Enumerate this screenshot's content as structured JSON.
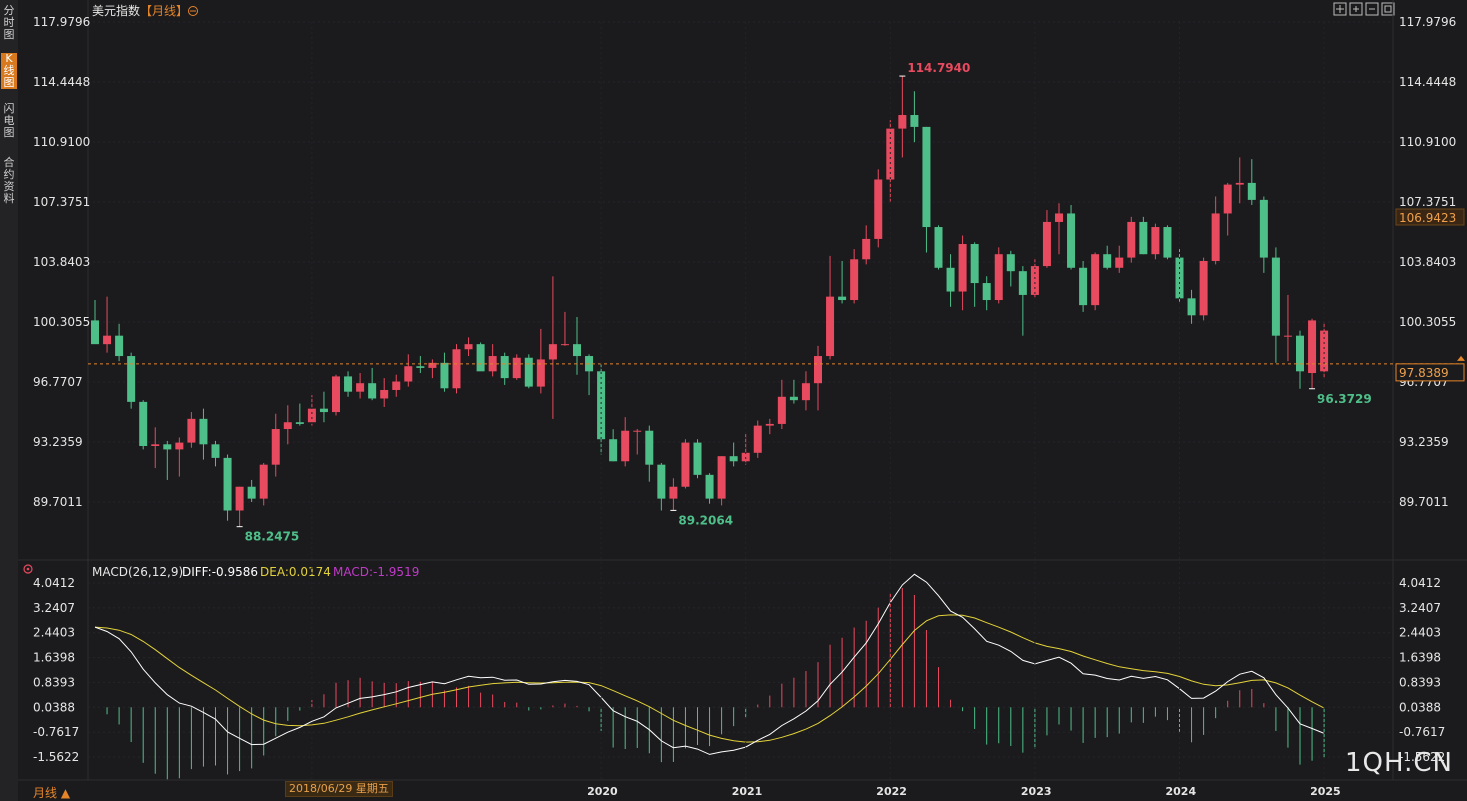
{
  "sidebar": {
    "tabs": [
      {
        "label": "分时图",
        "active": false
      },
      {
        "label": "K线图",
        "active": true
      },
      {
        "label": "闪电图",
        "active": false
      },
      {
        "label": "合约资料",
        "active": false
      }
    ]
  },
  "header": {
    "instrument": "美元指数",
    "period_tag": "【月线】",
    "settings_icon": "gear-circle-icon"
  },
  "window_controls": [
    "crosshair-icon",
    "zoom-in-icon",
    "zoom-out-icon",
    "restore-icon"
  ],
  "current_price_label": "106.9423",
  "last_price_label": "97.8389",
  "macd": {
    "label": "MACD(26,12,9)",
    "diff_text": "DIFF:-0.9586",
    "dea_text": "DEA:0.0174",
    "macd_text": "MACD:-1.9519",
    "icon": "indicator-icon"
  },
  "footer": {
    "period_button": "月线 ▲",
    "cursor_date": "2018/06/29 星期五",
    "watermark": "1QH.CN"
  },
  "colors": {
    "up": "#e84a5f",
    "down": "#4fbf8a",
    "diff": "#ffffff",
    "dea": "#e3d23a",
    "macd_label": "#c03ac8",
    "accent": "#e4852a"
  },
  "chart_data": [
    {
      "type": "candlestick",
      "title": "美元指数",
      "period": "monthly",
      "ylim": [
        87.5,
        118.6
      ],
      "y_ticks": [
        "117.9796",
        "114.4448",
        "110.9100",
        "107.3751",
        "103.8403",
        "100.3055",
        "96.7707",
        "93.2359",
        "89.7011"
      ],
      "x_ticks": [
        "2018",
        "2020",
        "2021",
        "2022",
        "2023",
        "2024",
        "2025"
      ],
      "start_month": "2017-04",
      "annotations": [
        {
          "text": "114.7940",
          "kind": "high"
        },
        {
          "text": "88.2475",
          "kind": "low"
        },
        {
          "text": "89.2064",
          "kind": "low"
        },
        {
          "text": "96.3729",
          "kind": "low"
        }
      ],
      "reference_line": 97.8389,
      "ohlc": [
        [
          100.4,
          101.6,
          99.3,
          99.0
        ],
        [
          99.0,
          101.8,
          98.5,
          99.5
        ],
        [
          99.5,
          100.2,
          98.0,
          98.3
        ],
        [
          98.3,
          98.5,
          95.2,
          95.6
        ],
        [
          95.6,
          95.7,
          92.8,
          93.0
        ],
        [
          93.0,
          94.1,
          91.7,
          93.1
        ],
        [
          93.1,
          93.3,
          91.0,
          92.8
        ],
        [
          92.8,
          93.5,
          91.2,
          93.2
        ],
        [
          93.2,
          95.0,
          92.9,
          94.6
        ],
        [
          94.6,
          95.2,
          92.2,
          93.1
        ],
        [
          93.1,
          93.3,
          91.8,
          92.3
        ],
        [
          92.3,
          92.5,
          88.6,
          89.2
        ],
        [
          89.2,
          90.6,
          88.2475,
          90.6
        ],
        [
          90.6,
          91.0,
          89.7,
          89.9
        ],
        [
          89.9,
          92.0,
          89.5,
          91.9
        ],
        [
          91.9,
          94.9,
          91.2,
          94.0
        ],
        [
          94.0,
          95.4,
          93.1,
          94.4
        ],
        [
          94.4,
          95.5,
          94.2,
          94.3
        ],
        [
          94.4,
          96.0,
          94.2,
          95.2
        ],
        [
          95.2,
          96.2,
          94.4,
          95.0
        ],
        [
          95.0,
          97.2,
          94.8,
          97.1
        ],
        [
          97.1,
          97.4,
          95.9,
          96.2
        ],
        [
          96.2,
          97.3,
          95.8,
          96.7
        ],
        [
          96.7,
          97.6,
          95.7,
          95.8
        ],
        [
          95.8,
          97.0,
          95.3,
          96.3
        ],
        [
          96.3,
          97.2,
          95.9,
          96.8
        ],
        [
          96.8,
          98.4,
          96.5,
          97.7
        ],
        [
          97.7,
          98.3,
          97.3,
          97.6
        ],
        [
          97.6,
          98.1,
          97.0,
          97.9
        ],
        [
          97.9,
          98.5,
          96.2,
          96.4
        ],
        [
          96.4,
          99.0,
          96.1,
          98.7
        ],
        [
          98.7,
          99.4,
          98.3,
          99.0
        ],
        [
          99.0,
          99.1,
          97.5,
          97.4
        ],
        [
          97.4,
          99.0,
          97.1,
          98.3
        ],
        [
          98.3,
          98.5,
          96.6,
          97.0
        ],
        [
          97.0,
          98.4,
          96.9,
          98.2
        ],
        [
          98.2,
          98.4,
          96.4,
          96.5
        ],
        [
          96.5,
          99.9,
          96.1,
          98.1
        ],
        [
          98.1,
          102.99,
          94.6,
          99.0
        ],
        [
          99.0,
          100.9,
          98.9,
          99.0
        ],
        [
          99.0,
          100.6,
          97.2,
          98.3
        ],
        [
          98.3,
          98.4,
          96.0,
          97.4
        ],
        [
          97.4,
          97.8,
          92.5,
          93.4
        ],
        [
          93.4,
          93.99,
          92.1,
          92.1
        ],
        [
          92.1,
          94.7,
          91.8,
          93.9
        ],
        [
          93.9,
          94.0,
          92.5,
          93.9
        ],
        [
          93.9,
          94.2,
          90.9,
          91.9
        ],
        [
          91.9,
          92.0,
          89.2,
          89.9
        ],
        [
          89.9,
          91.1,
          89.2064,
          90.6
        ],
        [
          90.6,
          93.4,
          90.5,
          93.2
        ],
        [
          93.2,
          93.4,
          91.1,
          91.3
        ],
        [
          91.3,
          91.4,
          89.6,
          89.9
        ],
        [
          89.9,
          92.4,
          89.5,
          92.4
        ],
        [
          92.4,
          93.2,
          91.8,
          92.1
        ],
        [
          92.1,
          93.7,
          91.9,
          92.6
        ],
        [
          92.6,
          94.5,
          92.3,
          94.2
        ],
        [
          94.2,
          94.6,
          93.7,
          94.3
        ],
        [
          94.3,
          96.9,
          94.0,
          95.9
        ],
        [
          95.9,
          96.9,
          95.5,
          95.7
        ],
        [
          95.7,
          97.4,
          95.1,
          96.7
        ],
        [
          96.7,
          98.9,
          95.1,
          98.3
        ],
        [
          98.3,
          104.2,
          98.1,
          101.8
        ],
        [
          101.8,
          103.9,
          101.4,
          101.6
        ],
        [
          101.6,
          104.6,
          101.4,
          104.0
        ],
        [
          104.0,
          106.0,
          103.7,
          105.2
        ],
        [
          105.2,
          109.3,
          104.7,
          108.7
        ],
        [
          108.7,
          112.2,
          107.4,
          111.7
        ],
        [
          111.7,
          114.794,
          110.0,
          112.5
        ],
        [
          112.5,
          113.9,
          110.9,
          111.8
        ],
        [
          111.8,
          111.8,
          104.4,
          105.9
        ],
        [
          105.9,
          106.0,
          103.4,
          103.5
        ],
        [
          103.5,
          104.3,
          101.2,
          102.1
        ],
        [
          102.1,
          105.4,
          101.0,
          104.9
        ],
        [
          104.9,
          105.0,
          101.2,
          102.6
        ],
        [
          102.6,
          103.0,
          101.0,
          101.6
        ],
        [
          101.6,
          104.7,
          101.4,
          104.3
        ],
        [
          104.3,
          104.5,
          102.4,
          103.3
        ],
        [
          103.3,
          103.6,
          99.5,
          101.9
        ],
        [
          101.9,
          104.0,
          101.7,
          103.6
        ],
        [
          103.6,
          106.9,
          103.5,
          106.2
        ],
        [
          106.2,
          107.3,
          104.3,
          106.7
        ],
        [
          106.7,
          107.2,
          103.4,
          103.5
        ],
        [
          103.5,
          103.9,
          100.9,
          101.3
        ],
        [
          101.3,
          104.4,
          101.0,
          104.3
        ],
        [
          104.3,
          104.8,
          103.4,
          103.5
        ],
        [
          103.5,
          104.8,
          103.2,
          104.1
        ],
        [
          104.1,
          106.5,
          103.8,
          106.2
        ],
        [
          106.2,
          106.5,
          104.3,
          104.3
        ],
        [
          104.3,
          106.1,
          104.0,
          105.9
        ],
        [
          105.9,
          106.0,
          104.0,
          104.1
        ],
        [
          104.1,
          104.6,
          101.5,
          101.7
        ],
        [
          101.7,
          102.2,
          100.2,
          100.7
        ],
        [
          100.7,
          104.1,
          100.4,
          103.9
        ],
        [
          103.9,
          107.7,
          103.7,
          106.7
        ],
        [
          106.7,
          108.5,
          105.4,
          108.4
        ],
        [
          108.4,
          110.0,
          107.3,
          108.5
        ],
        [
          108.5,
          109.9,
          107.2,
          107.5
        ],
        [
          107.5,
          107.7,
          103.2,
          104.1
        ],
        [
          104.1,
          104.7,
          97.9,
          99.5
        ],
        [
          99.5,
          101.9,
          98.0,
          99.5
        ],
        [
          99.5,
          99.8,
          96.3729,
          97.4
        ],
        [
          97.3,
          100.5,
          96.3729,
          100.4
        ],
        [
          97.4,
          100.3,
          97.0,
          99.8
        ]
      ]
    },
    {
      "type": "line",
      "title": "MACD(26,12,9)",
      "ylim": [
        -2.5,
        4.4
      ],
      "y_ticks": [
        "4.0412",
        "3.2407",
        "2.4403",
        "1.6398",
        "0.8393",
        "0.0388",
        "-0.7617",
        "-1.5622"
      ],
      "series": [
        {
          "name": "DIFF",
          "last": -0.9586
        },
        {
          "name": "DEA",
          "last": 0.0174
        },
        {
          "name": "MACD",
          "last": -1.9519
        }
      ]
    }
  ]
}
